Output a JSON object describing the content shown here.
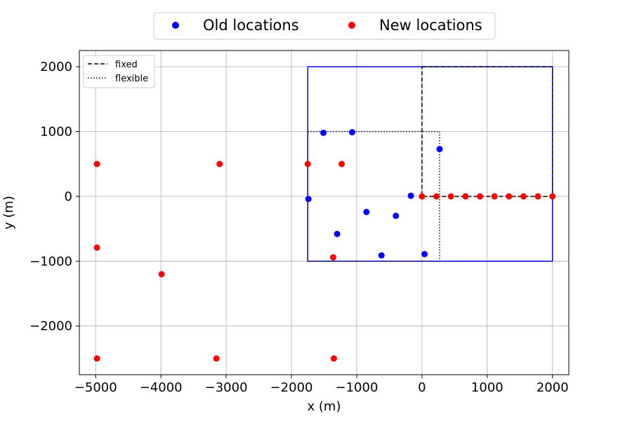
{
  "chart_data": {
    "type": "scatter",
    "xlabel": "x (m)",
    "ylabel": "y (m)",
    "xlim": [
      -5250,
      2250
    ],
    "ylim": [
      -2750,
      2250
    ],
    "x_ticks": [
      -5000,
      -4000,
      -3000,
      -2000,
      -1000,
      0,
      1000,
      2000
    ],
    "y_ticks": [
      -2000,
      -1000,
      0,
      1000,
      2000
    ],
    "x_tick_labels": [
      "−5000",
      "−4000",
      "−3000",
      "−2000",
      "−1000",
      "0",
      "1000",
      "2000"
    ],
    "y_tick_labels": [
      "−2000",
      "−1000",
      "0",
      "1000",
      "2000"
    ],
    "grid": true,
    "colors": {
      "old": "#0000ff",
      "new": "#ff0000",
      "grid": "#b0b0b0"
    },
    "series": [
      {
        "name": "Old locations",
        "color": "#0000ff",
        "points": [
          [
            -1510,
            980
          ],
          [
            -1070,
            990
          ],
          [
            270,
            730
          ],
          [
            -1740,
            -40
          ],
          [
            -170,
            10
          ],
          [
            -850,
            -240
          ],
          [
            -400,
            -300
          ],
          [
            -1300,
            -580
          ],
          [
            -620,
            -910
          ],
          [
            40,
            -890
          ]
        ]
      },
      {
        "name": "New locations",
        "color": "#ff0000",
        "points": [
          [
            -4980,
            500
          ],
          [
            -3100,
            500
          ],
          [
            -1750,
            500
          ],
          [
            -1230,
            500
          ],
          [
            0,
            0
          ],
          [
            222,
            0
          ],
          [
            444,
            0
          ],
          [
            667,
            0
          ],
          [
            889,
            0
          ],
          [
            1111,
            0
          ],
          [
            1333,
            0
          ],
          [
            1556,
            0
          ],
          [
            1778,
            0
          ],
          [
            2000,
            0
          ],
          [
            -4980,
            -790
          ],
          [
            -3990,
            -1200
          ],
          [
            -1360,
            -940
          ],
          [
            -4980,
            -2500
          ],
          [
            -3150,
            -2500
          ],
          [
            -1350,
            -2500
          ]
        ]
      }
    ],
    "regions": [
      {
        "style": "solid",
        "color": "#0000ff",
        "x": [
          -1750,
          2000
        ],
        "y": [
          -1000,
          2000
        ]
      },
      {
        "name": "fixed",
        "style": "dashed",
        "color": "#000000",
        "x": [
          0,
          2000
        ],
        "y": [
          0,
          2000
        ]
      },
      {
        "name": "flexible",
        "style": "dotted",
        "color": "#000000",
        "x": [
          -1750,
          270
        ],
        "y": [
          -1000,
          1000
        ]
      }
    ],
    "legend": {
      "top": {
        "placement": "above-plot",
        "entries": [
          "Old locations",
          "New locations"
        ]
      },
      "inner": {
        "placement": "upper-left",
        "entries": [
          "fixed",
          "flexible"
        ]
      }
    }
  }
}
